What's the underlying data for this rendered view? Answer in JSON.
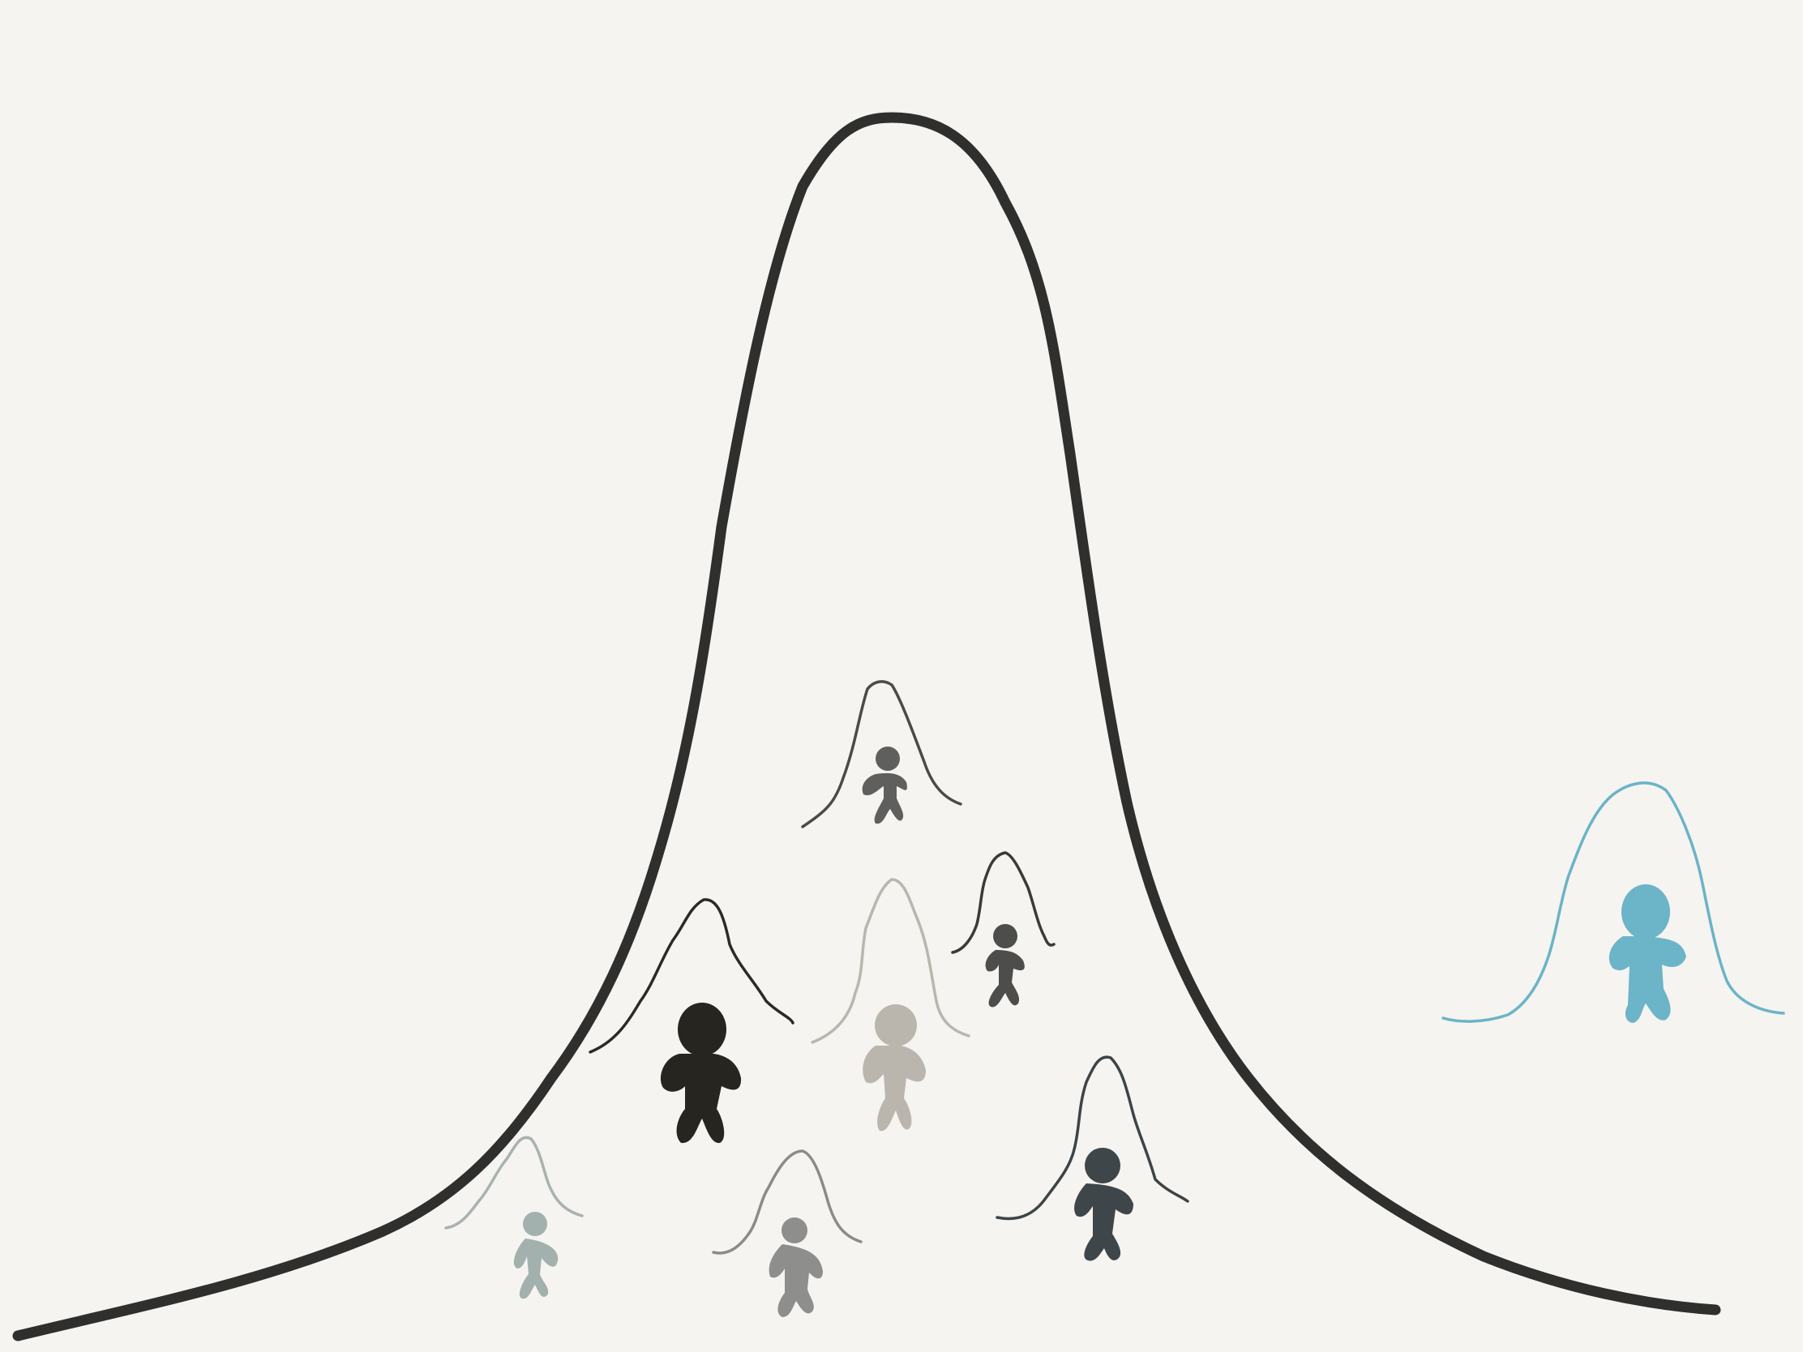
{
  "scene": {
    "background_color": "#f5f4f0",
    "main_curve": {
      "icon": "bell-curve",
      "color": "#2f2f2d"
    },
    "figures": [
      {
        "id": "top-center",
        "curve_color": "#4a4a48",
        "person_color": "#5f5f5d",
        "icon": "person-figure"
      },
      {
        "id": "left-big",
        "curve_color": "#2a2a28",
        "person_color": "#26251f",
        "icon": "person-figure"
      },
      {
        "id": "middle-pale",
        "curve_color": "#bab6ae",
        "person_color": "#bab6ae",
        "icon": "person-figure"
      },
      {
        "id": "middle-right",
        "curve_color": "#3a3a38",
        "person_color": "#4d4d4b",
        "icon": "person-figure"
      },
      {
        "id": "lower-left",
        "curve_color": "#a9b2b0",
        "person_color": "#a2b0ae",
        "icon": "person-figure"
      },
      {
        "id": "lower-center",
        "curve_color": "#8b8b89",
        "person_color": "#8e8e8c",
        "icon": "person-figure"
      },
      {
        "id": "lower-right",
        "curve_color": "#3e4446",
        "person_color": "#3f4649",
        "icon": "person-figure"
      },
      {
        "id": "outlier",
        "curve_color": "#6bb3c8",
        "person_color": "#6cb4c8",
        "icon": "person-figure"
      }
    ]
  }
}
